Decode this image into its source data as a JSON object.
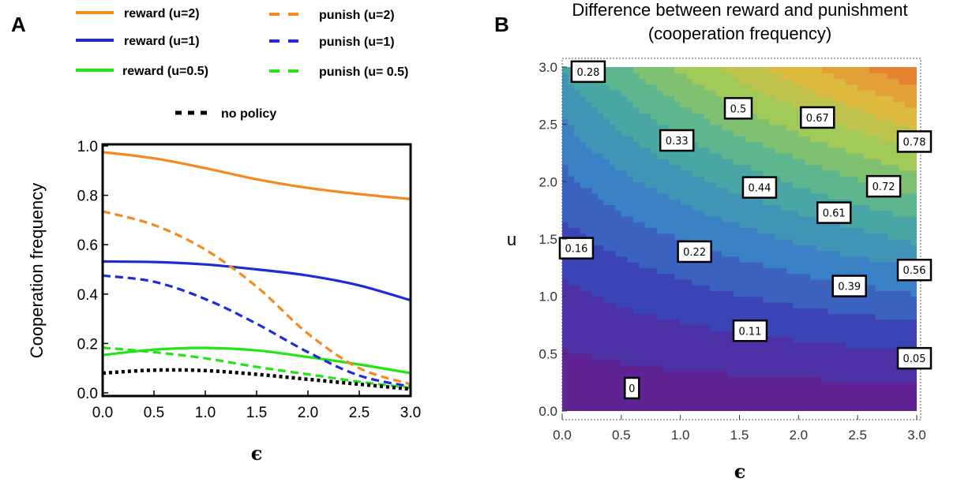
{
  "chart_data": [
    {
      "panel": "A",
      "type": "line",
      "xlabel": "ϵ",
      "ylabel": "Cooperation frequency",
      "xlim": [
        0,
        3
      ],
      "ylim": [
        0,
        1
      ],
      "xticks": [
        "0.0",
        "0.5",
        "1.0",
        "1.5",
        "2.0",
        "2.5",
        "3.0"
      ],
      "yticks": [
        "0.0",
        "0.2",
        "0.4",
        "0.6",
        "0.8",
        "1.0"
      ],
      "legend_placement": "top",
      "x": [
        0,
        0.5,
        1.0,
        1.5,
        2.0,
        2.5,
        3.0
      ],
      "series": [
        {
          "name": "reward (u=2)",
          "color": "#f5891f",
          "dash": "solid",
          "values": [
            0.975,
            0.95,
            0.91,
            0.865,
            0.83,
            0.805,
            0.785
          ]
        },
        {
          "name": "reward (u=1)",
          "color": "#1f2bd9",
          "dash": "solid",
          "values": [
            0.532,
            0.53,
            0.52,
            0.5,
            0.475,
            0.435,
            0.375
          ]
        },
        {
          "name": "reward (u=0.5)",
          "color": "#22e614",
          "dash": "solid",
          "values": [
            0.153,
            0.175,
            0.182,
            0.172,
            0.145,
            0.115,
            0.08
          ]
        },
        {
          "name": "punish (u=2)",
          "color": "#f5891f",
          "dash": "dashed",
          "values": [
            0.735,
            0.68,
            0.58,
            0.43,
            0.24,
            0.1,
            0.035
          ]
        },
        {
          "name": "punish (u=1)",
          "color": "#1f2bd9",
          "dash": "dashed",
          "values": [
            0.475,
            0.45,
            0.38,
            0.28,
            0.165,
            0.07,
            0.025
          ]
        },
        {
          "name": "punish (u= 0.5)",
          "color": "#22e614",
          "dash": "dashed",
          "values": [
            0.183,
            0.165,
            0.14,
            0.105,
            0.075,
            0.045,
            0.02
          ]
        },
        {
          "name": "no policy",
          "color": "#000000",
          "dash": "dotted",
          "values": [
            0.08,
            0.092,
            0.09,
            0.075,
            0.055,
            0.035,
            0.015
          ]
        }
      ]
    },
    {
      "panel": "B",
      "type": "heatmap",
      "title": "Difference between reward and punishment",
      "subtitle": "(cooperation frequency)",
      "xlabel": "ϵ",
      "ylabel": "u",
      "xlim": [
        0,
        3
      ],
      "ylim": [
        0,
        3
      ],
      "xticks": [
        "0.0",
        "0.5",
        "1.0",
        "1.5",
        "2.0",
        "2.5",
        "3.0"
      ],
      "yticks": [
        "0.0",
        "0.5",
        "1.0",
        "1.5",
        "2.0",
        "2.5",
        "3.0"
      ],
      "colorscale": [
        "#6a1b8a",
        "#3b3fb6",
        "#3a86c6",
        "#4cb09a",
        "#9dcb5a",
        "#e2b83c",
        "#e6742e"
      ],
      "contour_labels": [
        {
          "text": "0.28",
          "x": 0.22,
          "y": 2.96
        },
        {
          "text": "0.5",
          "x": 1.49,
          "y": 2.64
        },
        {
          "text": "0.67",
          "x": 2.16,
          "y": 2.56
        },
        {
          "text": "0.78",
          "x": 2.98,
          "y": 2.35
        },
        {
          "text": "0.33",
          "x": 0.97,
          "y": 2.36
        },
        {
          "text": "0.44",
          "x": 1.67,
          "y": 1.95
        },
        {
          "text": "0.72",
          "x": 2.72,
          "y": 1.96
        },
        {
          "text": "0.61",
          "x": 2.3,
          "y": 1.73
        },
        {
          "text": "0.16",
          "x": 0.12,
          "y": 1.42
        },
        {
          "text": "0.22",
          "x": 1.12,
          "y": 1.39
        },
        {
          "text": "0.56",
          "x": 2.98,
          "y": 1.23
        },
        {
          "text": "0.39",
          "x": 2.43,
          "y": 1.09
        },
        {
          "text": "0.11",
          "x": 1.59,
          "y": 0.7
        },
        {
          "text": "0.05",
          "x": 2.98,
          "y": 0.46
        },
        {
          "text": "0",
          "x": 0.59,
          "y": 0.2
        }
      ]
    }
  ]
}
